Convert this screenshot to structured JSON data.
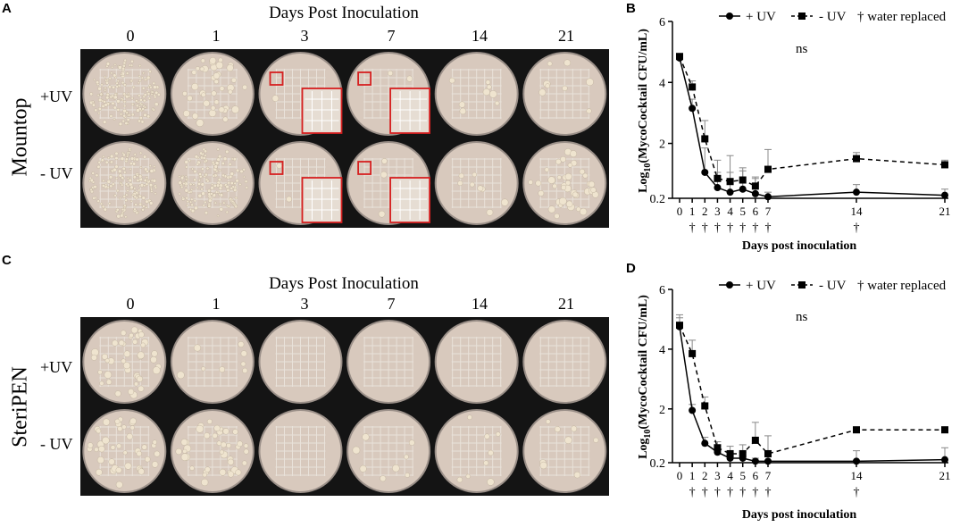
{
  "panels": [
    {
      "letter": "A",
      "title": "Days Post Inoculation",
      "days": [
        "0",
        "1",
        "3",
        "7",
        "14",
        "21"
      ],
      "device": "Mountop",
      "rows": [
        "+UV",
        "- UV"
      ],
      "plates": [
        [
          {
            "colonies": "dense"
          },
          {
            "colonies": "medium"
          },
          {
            "colonies": "inset"
          },
          {
            "colonies": "inset"
          },
          {
            "colonies": "few"
          },
          {
            "colonies": "few"
          }
        ],
        [
          {
            "colonies": "dense"
          },
          {
            "colonies": "dense"
          },
          {
            "colonies": "inset"
          },
          {
            "colonies": "inset"
          },
          {
            "colonies": "few"
          },
          {
            "colonies": "medium"
          }
        ]
      ]
    },
    {
      "letter": "C",
      "title": "Days Post Inoculation",
      "days": [
        "0",
        "1",
        "3",
        "7",
        "14",
        "21"
      ],
      "device": "SteriPEN",
      "rows": [
        "+UV",
        "- UV"
      ],
      "plates": [
        [
          {
            "colonies": "medium"
          },
          {
            "colonies": "few"
          },
          {
            "colonies": "none"
          },
          {
            "colonies": "none"
          },
          {
            "colonies": "none"
          },
          {
            "colonies": "none"
          }
        ],
        [
          {
            "colonies": "medium"
          },
          {
            "colonies": "medium"
          },
          {
            "colonies": "none"
          },
          {
            "colonies": "few"
          },
          {
            "colonies": "few"
          },
          {
            "colonies": "few"
          }
        ]
      ]
    }
  ],
  "colors": {
    "photo_bg": "#141414",
    "plate_agar": "#d8c9bd",
    "plate_rim": "#9a8f88",
    "colony": "#efe4cf",
    "highlight_box": "#d62020",
    "series": "#000000"
  },
  "chart_data": [
    {
      "letter": "B",
      "type": "line",
      "ylabel": "Log10(MycoCocktail CFU/mL)",
      "xlabel": "Days post inoculation",
      "ylim": [
        0.2,
        6
      ],
      "xlim": [
        0,
        21
      ],
      "yticks": [
        "0.2",
        "2",
        "4",
        "6"
      ],
      "xticks": [
        "0",
        "1",
        "2",
        "3",
        "4",
        "5",
        "6",
        "7",
        "14",
        "21"
      ],
      "annotation": "ns",
      "legend_placement": "top",
      "dagger_days": [
        1,
        2,
        3,
        4,
        5,
        6,
        7,
        14
      ],
      "dagger_symbol": "†",
      "legend": {
        "uv_label": "+ UV",
        "nouv_label": "- UV",
        "dagger_label": "† water replaced"
      },
      "series": [
        {
          "name": "+ UV",
          "marker": "circle",
          "dash": "solid",
          "x": [
            0,
            1,
            2,
            3,
            4,
            5,
            6,
            7,
            14,
            21
          ],
          "y": [
            4.8,
            3.15,
            1.05,
            0.55,
            0.4,
            0.5,
            0.35,
            0.25,
            0.4,
            0.3
          ],
          "err": [
            0.1,
            0.3,
            0.8,
            0.5,
            1.2,
            0.6,
            0.5,
            0.15,
            0.25,
            0.2
          ]
        },
        {
          "name": "- UV",
          "marker": "square",
          "dash": "dashed",
          "x": [
            0,
            1,
            2,
            3,
            4,
            5,
            6,
            7,
            14,
            21
          ],
          "y": [
            4.85,
            3.85,
            2.15,
            0.85,
            0.75,
            0.8,
            0.6,
            1.15,
            1.5,
            1.3
          ],
          "err": [
            0.1,
            0.2,
            0.6,
            0.6,
            0.3,
            0.4,
            0.3,
            0.65,
            0.2,
            0.15
          ]
        }
      ]
    },
    {
      "letter": "D",
      "type": "line",
      "ylabel": "Log10(MycoCocktail CFU/mL)",
      "xlabel": "Days post inoculation",
      "ylim": [
        0.2,
        6
      ],
      "xlim": [
        0,
        21
      ],
      "yticks": [
        "0.2",
        "2",
        "4",
        "6"
      ],
      "xticks": [
        "0",
        "1",
        "2",
        "3",
        "4",
        "5",
        "6",
        "7",
        "14",
        "21"
      ],
      "annotation": "ns",
      "legend_placement": "top",
      "dagger_days": [
        1,
        2,
        3,
        4,
        5,
        6,
        7,
        14
      ],
      "dagger_symbol": "†",
      "legend": {
        "uv_label": "+ UV",
        "nouv_label": "- UV",
        "dagger_label": "† water replaced"
      },
      "series": [
        {
          "name": "+ UV",
          "marker": "circle",
          "dash": "solid",
          "x": [
            0,
            1,
            2,
            3,
            4,
            5,
            6,
            7,
            14,
            21
          ],
          "y": [
            4.75,
            1.95,
            0.85,
            0.55,
            0.35,
            0.35,
            0.25,
            0.25,
            0.25,
            0.3
          ],
          "err": [
            0.3,
            0.2,
            0.2,
            0.25,
            0.2,
            0.2,
            0.1,
            0.3,
            0.35,
            0.4
          ]
        },
        {
          "name": "- UV",
          "marker": "square",
          "dash": "dashed",
          "x": [
            0,
            1,
            2,
            3,
            4,
            5,
            6,
            7,
            14,
            21
          ],
          "y": [
            4.8,
            3.85,
            2.1,
            0.7,
            0.5,
            0.5,
            0.95,
            0.5,
            1.3,
            1.3
          ],
          "err": [
            0.35,
            0.45,
            0.3,
            0.2,
            0.25,
            0.3,
            0.6,
            0.6,
            0.05,
            0.05
          ]
        }
      ]
    }
  ]
}
